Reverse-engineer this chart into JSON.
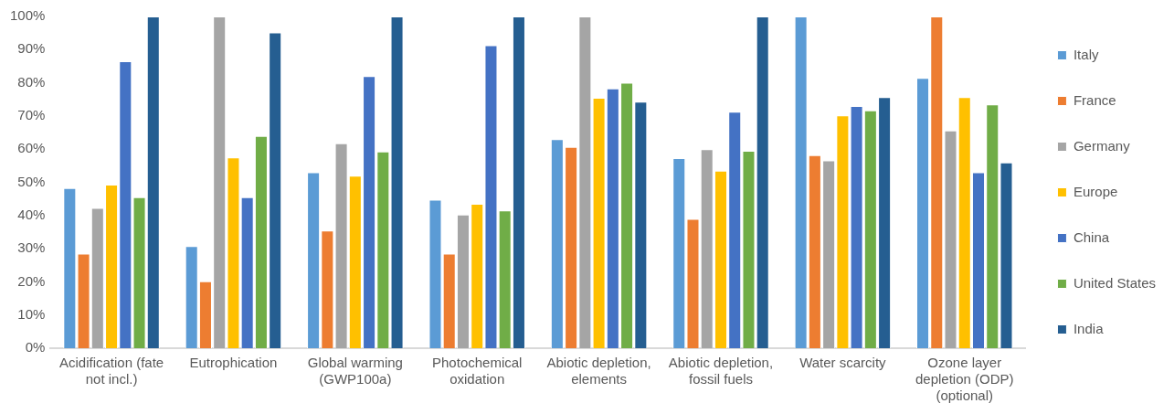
{
  "chart_data": {
    "type": "bar",
    "categories": [
      "Acidification (fate not incl.)",
      "Eutrophication",
      "Global warming (GWP100a)",
      "Photochemical oxidation",
      "Abiotic depletion, elements",
      "Abiotic depletion, fossil fuels",
      "Water scarcity",
      "Ozone layer depletion (ODP) (optional)"
    ],
    "series": [
      {
        "name": "Italy",
        "color": "#5b9bd5",
        "values": [
          48.3,
          30.8,
          53,
          44.8,
          63,
          57.3,
          100,
          81.5
        ]
      },
      {
        "name": "France",
        "color": "#ed7d31",
        "values": [
          28.5,
          20.2,
          35.5,
          28.5,
          60.7,
          39,
          58.2,
          100
        ]
      },
      {
        "name": "Germany",
        "color": "#a5a5a5",
        "values": [
          42.3,
          100,
          61.8,
          40.3,
          100,
          60,
          56.6,
          65.6
        ]
      },
      {
        "name": "Europe",
        "color": "#ffc000",
        "values": [
          49.3,
          57.5,
          52,
          43.5,
          75.5,
          53.5,
          70.2,
          75.7
        ]
      },
      {
        "name": "China",
        "color": "#4472c4",
        "values": [
          86.5,
          45.5,
          82,
          91.3,
          78.3,
          71.3,
          73,
          53
        ]
      },
      {
        "name": "United States",
        "color": "#70ad47",
        "values": [
          45.5,
          64,
          59.3,
          41.5,
          80,
          59.5,
          71.7,
          73.5
        ]
      },
      {
        "name": "India",
        "color": "#255e91",
        "values": [
          100,
          95.2,
          100,
          100,
          74.3,
          100,
          75.7,
          56
        ]
      }
    ],
    "ylim": [
      0,
      100
    ],
    "yticks": [
      {
        "value": 0,
        "label": "0%"
      },
      {
        "value": 10,
        "label": "10%"
      },
      {
        "value": 20,
        "label": "20%"
      },
      {
        "value": 30,
        "label": "30%"
      },
      {
        "value": 40,
        "label": "40%"
      },
      {
        "value": 50,
        "label": "50%"
      },
      {
        "value": 60,
        "label": "60%"
      },
      {
        "value": 70,
        "label": "70%"
      },
      {
        "value": 80,
        "label": "80%"
      },
      {
        "value": 90,
        "label": "90%"
      },
      {
        "value": 100,
        "label": "100%"
      }
    ],
    "grid": false,
    "legend": "right"
  }
}
